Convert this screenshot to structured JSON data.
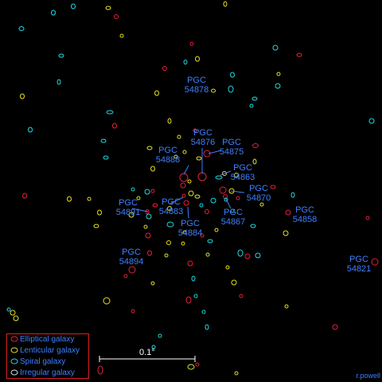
{
  "map": {
    "type": "galaxy group map",
    "colors": {
      "elliptical": "#e8203a",
      "lenticular": "#e8e020",
      "spiral": "#20d8e0",
      "irregular": "#e0e0e0",
      "label": "#3f7fff",
      "scale": "#ffffff",
      "legend_border": "#e02020"
    }
  },
  "labels": [
    {
      "id": "pgc54878",
      "line1": "PGC",
      "line2": "54878"
    },
    {
      "id": "pgc54876",
      "line1": "PGC",
      "line2": "54876"
    },
    {
      "id": "pgc54875",
      "line1": "PGC",
      "line2": "54875"
    },
    {
      "id": "pgc54888",
      "line1": "PGC",
      "line2": "54888"
    },
    {
      "id": "pgc54863",
      "line1": "PGC",
      "line2": "54863"
    },
    {
      "id": "pgc54870",
      "line1": "PGC",
      "line2": "54870"
    },
    {
      "id": "pgc54891",
      "line1": "PGC",
      "line2": "54891"
    },
    {
      "id": "pgc54883",
      "line1": "PGC",
      "line2": "54883"
    },
    {
      "id": "pgc54867",
      "line1": "PGC",
      "line2": "54867"
    },
    {
      "id": "pgc54858",
      "line1": "PGC",
      "line2": "54858"
    },
    {
      "id": "pgc54884",
      "line1": "PGC",
      "line2": "54884"
    },
    {
      "id": "pgc54894",
      "line1": "PGC",
      "line2": "54894"
    },
    {
      "id": "pgc54821",
      "line1": "PGC",
      "line2": "54821"
    }
  ],
  "legend": {
    "items": [
      {
        "key": "elliptical",
        "label": "Elliptical galaxy"
      },
      {
        "key": "lenticular",
        "label": "Lenticular galaxy"
      },
      {
        "key": "spiral",
        "label": "Spiral galaxy"
      },
      {
        "key": "irregular",
        "label": "Irregular galaxy"
      }
    ]
  },
  "scale_bar": {
    "label": "0.1°"
  },
  "credit": "r.powell"
}
